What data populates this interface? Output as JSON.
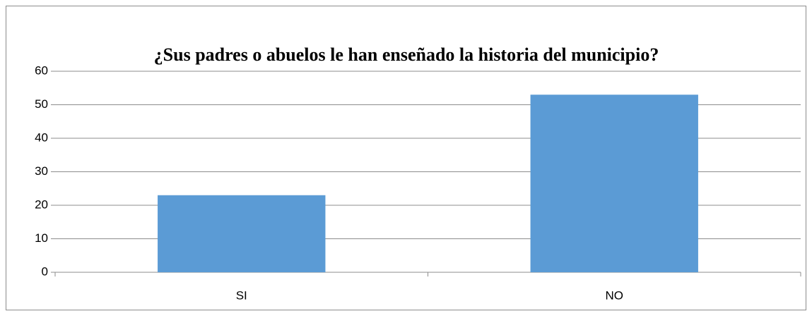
{
  "chart_data": {
    "type": "bar",
    "title": "¿Sus padres o abuelos le han enseñado la historia del municipio?",
    "categories": [
      "SI",
      "NO"
    ],
    "values": [
      23,
      53
    ],
    "color": "#5b9bd5",
    "ylim": [
      0,
      60
    ],
    "yticks": [
      0,
      10,
      20,
      30,
      40,
      50,
      60
    ],
    "grid": true
  }
}
